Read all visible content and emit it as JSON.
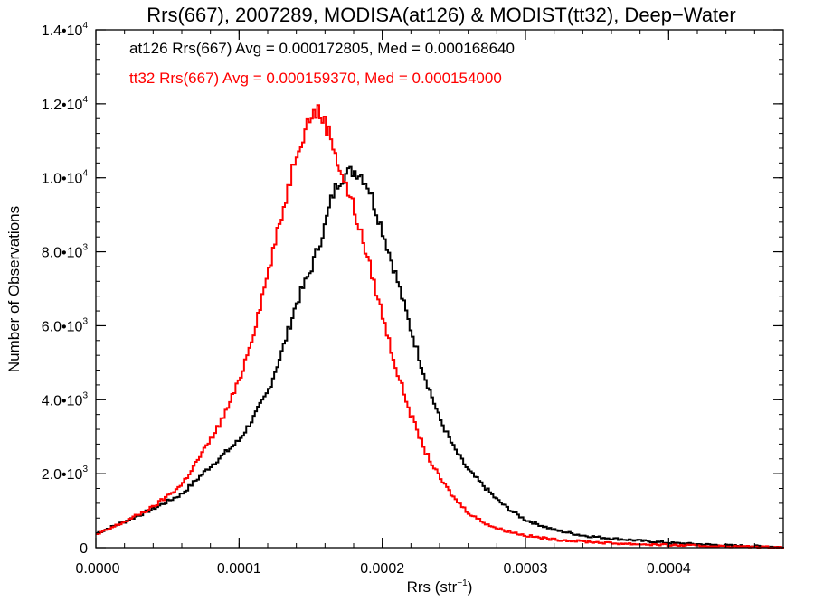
{
  "chart_data": {
    "type": "line",
    "title": "Rrs(667), 2007289, MODISA(at126) & MODIST(tt32), Deep−Water",
    "xlabel": "Rrs (str",
    "xlabel_sup": "−1",
    "xlabel_close": ")",
    "ylabel": "Number of Observations",
    "xlim": [
      0.0,
      0.00048
    ],
    "ylim": [
      0,
      14000
    ],
    "grid": false,
    "x_ticks": [
      {
        "value": 0.0,
        "label": "0.0000"
      },
      {
        "value": 0.0001,
        "label": "0.0001"
      },
      {
        "value": 0.0002,
        "label": "0.0002"
      },
      {
        "value": 0.0003,
        "label": "0.0003"
      },
      {
        "value": 0.0004,
        "label": "0.0004"
      }
    ],
    "y_ticks": [
      {
        "value": 0,
        "mant": "0",
        "exp": ""
      },
      {
        "value": 2000,
        "mant": "2.0•10",
        "exp": "3"
      },
      {
        "value": 4000,
        "mant": "4.0•10",
        "exp": "3"
      },
      {
        "value": 6000,
        "mant": "6.0•10",
        "exp": "3"
      },
      {
        "value": 8000,
        "mant": "8.0•10",
        "exp": "3"
      },
      {
        "value": 10000,
        "mant": "1.0•10",
        "exp": "4"
      },
      {
        "value": 12000,
        "mant": "1.2•10",
        "exp": "4"
      },
      {
        "value": 14000,
        "mant": "1.4•10",
        "exp": "4"
      }
    ],
    "annotations": [
      {
        "text": "at126 Rrs(667) Avg = 0.000172805, Med = 0.000168640",
        "color": "#000000"
      },
      {
        "text": "tt32 Rrs(667) Avg = 0.000159370, Med = 0.000154000",
        "color": "#ff0000"
      }
    ],
    "series": [
      {
        "color": "#000000",
        "points": [
          [
            0.0,
            380
          ],
          [
            2e-05,
            700
          ],
          [
            4e-05,
            1050
          ],
          [
            6e-05,
            1450
          ],
          [
            8e-05,
            2200
          ],
          [
            0.0001,
            2900
          ],
          [
            0.00011,
            3500
          ],
          [
            0.00012,
            4200
          ],
          [
            0.00013,
            5300
          ],
          [
            0.00014,
            6600
          ],
          [
            0.00015,
            7500
          ],
          [
            0.00016,
            8700
          ],
          [
            0.000165,
            9500
          ],
          [
            0.00017,
            9950
          ],
          [
            0.000175,
            10100
          ],
          [
            0.00018,
            10200
          ],
          [
            0.000185,
            10100
          ],
          [
            0.00019,
            9800
          ],
          [
            0.0002,
            8600
          ],
          [
            0.00021,
            7300
          ],
          [
            0.00022,
            5900
          ],
          [
            0.00023,
            4600
          ],
          [
            0.00024,
            3500
          ],
          [
            0.00025,
            2700
          ],
          [
            0.00026,
            2100
          ],
          [
            0.00027,
            1700
          ],
          [
            0.00028,
            1300
          ],
          [
            0.00029,
            1000
          ],
          [
            0.0003,
            750
          ],
          [
            0.00032,
            480
          ],
          [
            0.00034,
            330
          ],
          [
            0.00036,
            250
          ],
          [
            0.0004,
            130
          ],
          [
            0.00044,
            60
          ],
          [
            0.00048,
            20
          ]
        ]
      },
      {
        "color": "#ff0000",
        "points": [
          [
            0.0,
            340
          ],
          [
            2e-05,
            700
          ],
          [
            4e-05,
            1100
          ],
          [
            6e-05,
            1700
          ],
          [
            8e-05,
            2900
          ],
          [
            9e-05,
            3600
          ],
          [
            0.0001,
            4500
          ],
          [
            0.00011,
            5800
          ],
          [
            0.00012,
            7400
          ],
          [
            0.00013,
            9000
          ],
          [
            0.00014,
            10700
          ],
          [
            0.00015,
            11700
          ],
          [
            0.000155,
            11800
          ],
          [
            0.00016,
            11500
          ],
          [
            0.000165,
            11000
          ],
          [
            0.00017,
            10300
          ],
          [
            0.00018,
            9200
          ],
          [
            0.00019,
            7800
          ],
          [
            0.0002,
            6300
          ],
          [
            0.00021,
            4800
          ],
          [
            0.00022,
            3600
          ],
          [
            0.00023,
            2600
          ],
          [
            0.00024,
            1900
          ],
          [
            0.00025,
            1350
          ],
          [
            0.00026,
            950
          ],
          [
            0.00027,
            700
          ],
          [
            0.00028,
            520
          ],
          [
            0.0003,
            330
          ],
          [
            0.00032,
            220
          ],
          [
            0.00036,
            120
          ],
          [
            0.0004,
            70
          ],
          [
            0.00044,
            35
          ],
          [
            0.00048,
            10
          ]
        ]
      }
    ]
  }
}
